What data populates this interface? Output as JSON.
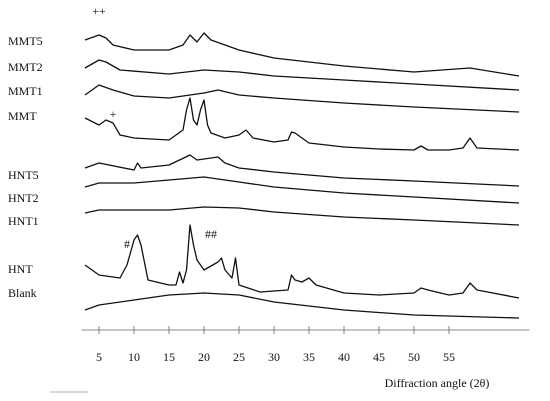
{
  "chart_data": {
    "type": "line",
    "x_label": "Diffraction angle (2θ)",
    "xlim": [
      2.5,
      66.5
    ],
    "ylim": [
      0,
      330
    ],
    "xticks": [
      5,
      10,
      15,
      20,
      25,
      30,
      35,
      40,
      45,
      50,
      55
    ],
    "color": "#111111",
    "series": [
      {
        "name": "MMT5",
        "x": [
          3,
          5,
          6,
          7,
          10,
          15,
          17,
          18,
          19,
          20,
          21,
          23,
          25,
          30,
          35,
          40,
          50,
          58,
          65
        ],
        "values": [
          290,
          295,
          292,
          285,
          280,
          280,
          285,
          295,
          288,
          297,
          290,
          285,
          280,
          272,
          268,
          264,
          258,
          262,
          254
        ]
      },
      {
        "name": "MMT2",
        "x": [
          3,
          5,
          6,
          8,
          15,
          20,
          25,
          30,
          40,
          50,
          65
        ],
        "values": [
          262,
          270,
          268,
          260,
          256,
          260,
          258,
          254,
          250,
          246,
          240
        ]
      },
      {
        "name": "MMT1",
        "x": [
          3,
          5,
          7,
          10,
          15,
          20,
          22,
          25,
          30,
          40,
          50,
          65
        ],
        "values": [
          235,
          245,
          240,
          234,
          232,
          237,
          240,
          235,
          232,
          227,
          223,
          218
        ]
      },
      {
        "name": "MMT",
        "x": [
          3,
          5,
          6,
          7,
          8,
          10,
          15,
          17,
          17.5,
          18,
          18.5,
          19,
          19.5,
          20,
          20.5,
          21,
          23,
          25,
          26,
          27,
          30,
          32,
          32.5,
          33,
          34,
          35,
          40,
          45,
          50,
          51,
          52,
          55,
          57,
          58,
          59,
          65
        ],
        "values": [
          212,
          205,
          210,
          207,
          195,
          192,
          190,
          200,
          220,
          232,
          210,
          205,
          220,
          230,
          205,
          197,
          192,
          195,
          200,
          192,
          188,
          190,
          198,
          197,
          192,
          187,
          183,
          181,
          180,
          184,
          180,
          180,
          182,
          192,
          182,
          180
        ]
      },
      {
        "name": "HNT5",
        "x": [
          3,
          5,
          10,
          10.5,
          11,
          15,
          18,
          19,
          22,
          23,
          25,
          30,
          40,
          50,
          65
        ],
        "values": [
          162,
          167,
          160,
          167,
          162,
          165,
          175,
          170,
          173,
          167,
          162,
          158,
          152,
          149,
          144
        ]
      },
      {
        "name": "HNT2",
        "x": [
          3,
          5,
          10,
          15,
          20,
          25,
          30,
          40,
          50,
          65
        ],
        "values": [
          143,
          147,
          147,
          150,
          153,
          148,
          143,
          137,
          133,
          127
        ]
      },
      {
        "name": "HNT1",
        "x": [
          3,
          5,
          10,
          15,
          20,
          25,
          30,
          40,
          50,
          65
        ],
        "values": [
          117,
          120,
          120,
          120,
          123,
          122,
          118,
          113,
          110,
          105
        ]
      },
      {
        "name": "HNT",
        "x": [
          3,
          5,
          8,
          9,
          10,
          10.5,
          11,
          12,
          15,
          16,
          16.5,
          17,
          17.5,
          18,
          18.5,
          19,
          20,
          22,
          22.5,
          23,
          24,
          24.5,
          25,
          28,
          32,
          32.5,
          33,
          34,
          35,
          36,
          40,
          45,
          50,
          51,
          52,
          55,
          57,
          58,
          59,
          65
        ],
        "values": [
          65,
          55,
          52,
          65,
          90,
          95,
          85,
          50,
          45,
          45,
          58,
          47,
          60,
          105,
          85,
          70,
          60,
          68,
          72,
          60,
          52,
          72,
          45,
          38,
          40,
          55,
          50,
          48,
          52,
          45,
          37,
          35,
          37,
          42,
          40,
          35,
          37,
          47,
          40,
          32
        ]
      },
      {
        "name": "Blank",
        "x": [
          3,
          5,
          10,
          15,
          20,
          25,
          30,
          40,
          50,
          65
        ],
        "values": [
          20,
          25,
          30,
          35,
          37,
          35,
          28,
          20,
          15,
          12
        ]
      }
    ],
    "annotations": [
      {
        "text": "++",
        "x": 5,
        "y": 318
      },
      {
        "text": "+",
        "x": 7,
        "y": 215
      },
      {
        "text": "#",
        "x": 9,
        "y": 85
      },
      {
        "text": "##",
        "x": 21,
        "y": 95
      }
    ]
  }
}
